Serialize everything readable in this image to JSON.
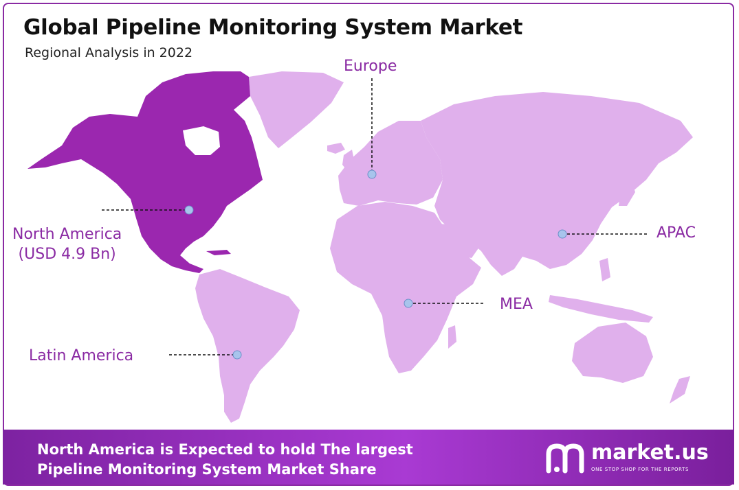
{
  "header": {
    "title": "Global Pipeline Monitoring System Market",
    "subtitle": "Regional Analysis in 2022"
  },
  "map": {
    "highlight_color": "#9b27af",
    "region_color": "#e0b0ec",
    "regions": [
      {
        "key": "north_america",
        "name": "North America",
        "value": "(USD 4.9 Bn)",
        "highlighted": true
      },
      {
        "key": "europe",
        "name": "Europe",
        "highlighted": false
      },
      {
        "key": "apac",
        "name": "APAC",
        "highlighted": false
      },
      {
        "key": "mea",
        "name": "MEA",
        "highlighted": false
      },
      {
        "key": "latin_america",
        "name": "Latin America",
        "highlighted": false
      }
    ]
  },
  "footer": {
    "line1": "North America is Expected to hold The largest",
    "line2": "Pipeline Monitoring System Market Share",
    "brand_name": "market.us",
    "brand_tagline": "ONE STOP SHOP FOR THE REPORTS"
  }
}
